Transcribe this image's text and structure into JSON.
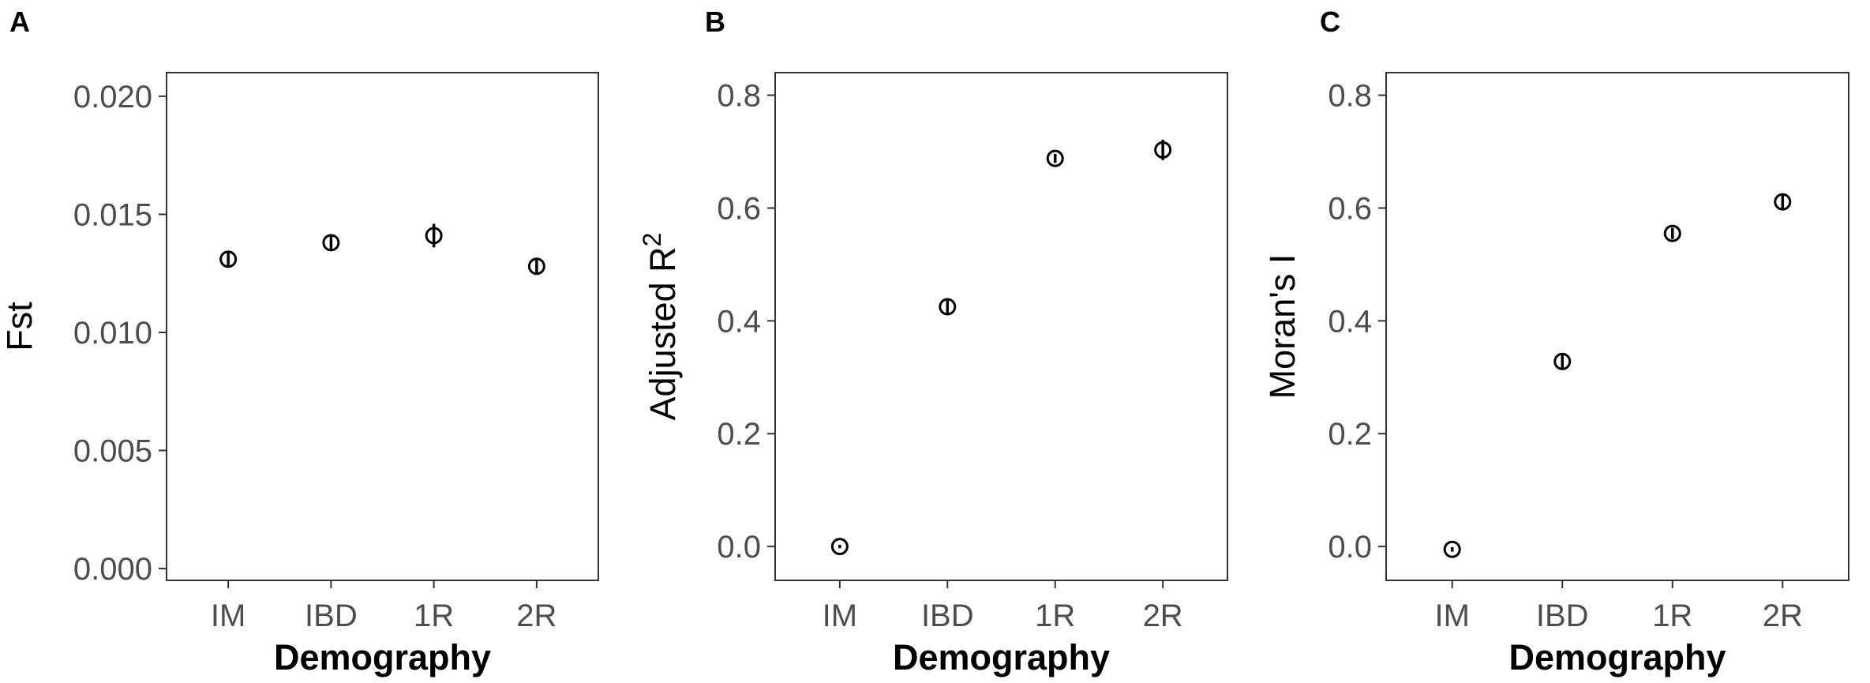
{
  "chart_data": [
    {
      "type": "scatter",
      "panel": "A",
      "xlabel": "Demography",
      "ylabel": "Fst",
      "categories": [
        "IM",
        "IBD",
        "1R",
        "2R"
      ],
      "values": [
        0.0131,
        0.0138,
        0.0141,
        0.0128
      ],
      "error": [
        0.0003,
        0.0003,
        0.0005,
        0.0003
      ],
      "ylim": [
        -0.0005,
        0.021
      ],
      "yticks": [
        0.0,
        0.005,
        0.01,
        0.015,
        0.02
      ],
      "ytick_labels": [
        "0.000",
        "0.005",
        "0.010",
        "0.015",
        "0.020"
      ],
      "grid": false
    },
    {
      "type": "scatter",
      "panel": "B",
      "xlabel": "Demography",
      "ylabel": "Adjusted R",
      "ylabel_sup": "2",
      "categories": [
        "IM",
        "IBD",
        "1R",
        "2R"
      ],
      "values": [
        0.0,
        0.425,
        0.688,
        0.703
      ],
      "error": [
        0.003,
        0.012,
        0.008,
        0.018
      ],
      "ylim": [
        -0.06,
        0.84
      ],
      "yticks": [
        0.0,
        0.2,
        0.4,
        0.6,
        0.8
      ],
      "ytick_labels": [
        "0.0",
        "0.2",
        "0.4",
        "0.6",
        "0.8"
      ],
      "grid": false
    },
    {
      "type": "scatter",
      "panel": "C",
      "xlabel": "Demography",
      "ylabel": "Moran's I",
      "categories": [
        "IM",
        "IBD",
        "1R",
        "2R"
      ],
      "values": [
        -0.005,
        0.328,
        0.555,
        0.611
      ],
      "error": [
        0.004,
        0.013,
        0.01,
        0.015
      ],
      "ylim": [
        -0.06,
        0.84
      ],
      "yticks": [
        0.0,
        0.2,
        0.4,
        0.6,
        0.8
      ],
      "ytick_labels": [
        "0.0",
        "0.2",
        "0.4",
        "0.6",
        "0.8"
      ],
      "grid": false
    }
  ]
}
